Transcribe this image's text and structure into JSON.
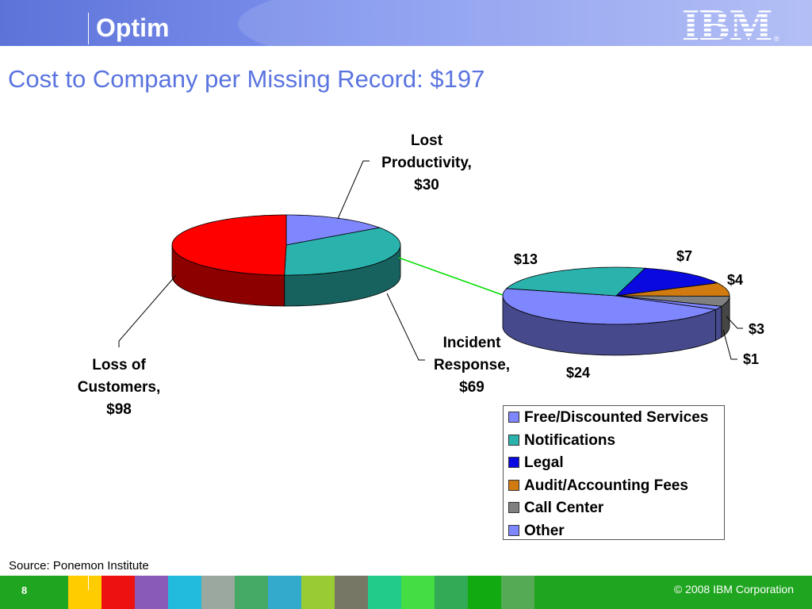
{
  "header": {
    "brand": "Optim",
    "logo_text": "IBM",
    "logo_registered": "®",
    "gradient_colors": [
      "#5d73d8",
      "#a9b6f4"
    ]
  },
  "title": "Cost to Company per Missing Record: $197",
  "chart_data": [
    {
      "type": "pie",
      "slices": [
        {
          "name": "Lost Productivity",
          "value": 30,
          "color": "#7f87ff",
          "label_lines": [
            "Lost",
            "Productivity,",
            "$30"
          ]
        },
        {
          "name": "Incident Response",
          "value": 69,
          "color": "#2ab3ad",
          "label_lines": [
            "Incident",
            "Response,",
            "$69"
          ]
        },
        {
          "name": "Loss of Customers",
          "value": 98,
          "color": "#ff0000",
          "label_lines": [
            "Loss of",
            "Customers,",
            "$98"
          ]
        }
      ]
    },
    {
      "type": "pie",
      "slices": [
        {
          "name": "Free/Discounted Services",
          "value": 24,
          "label": "$24",
          "color": "#7f87ff"
        },
        {
          "name": "Notifications",
          "value": 13,
          "label": "$13",
          "color": "#2ab3ad"
        },
        {
          "name": "Legal",
          "value": 7,
          "label": "$7",
          "color": "#0a0ae0"
        },
        {
          "name": "Audit/Accounting Fees",
          "value": 4,
          "label": "$4",
          "color": "#d07a10"
        },
        {
          "name": "Call Center",
          "value": 3,
          "label": "$3",
          "color": "#808080"
        },
        {
          "name": "Other",
          "value": 1,
          "label": "$1",
          "color": "#7f87ff"
        }
      ],
      "legend": {
        "position": "bottom-right",
        "items": [
          "Free/Discounted Services",
          "Notifications",
          "Legal",
          "Audit/Accounting Fees",
          "Call Center",
          "Other"
        ]
      },
      "connector_color": "#00dd00"
    }
  ],
  "source": "Source: Ponemon Institute",
  "footer": {
    "page_number": "8",
    "copyright": "© 2008 IBM Corporation",
    "color": "#1fa51f",
    "tile_colors": [
      "#1fa51f",
      "#ffcc00",
      "#ee1111",
      "#8a5ab8",
      "#22bbdd",
      "#9aa8a0",
      "#44aa66",
      "#33aacc",
      "#99cc33",
      "#777766",
      "#22cc88",
      "#44dd44",
      "#33aa55",
      "#11aa11",
      "#55aa55"
    ]
  }
}
